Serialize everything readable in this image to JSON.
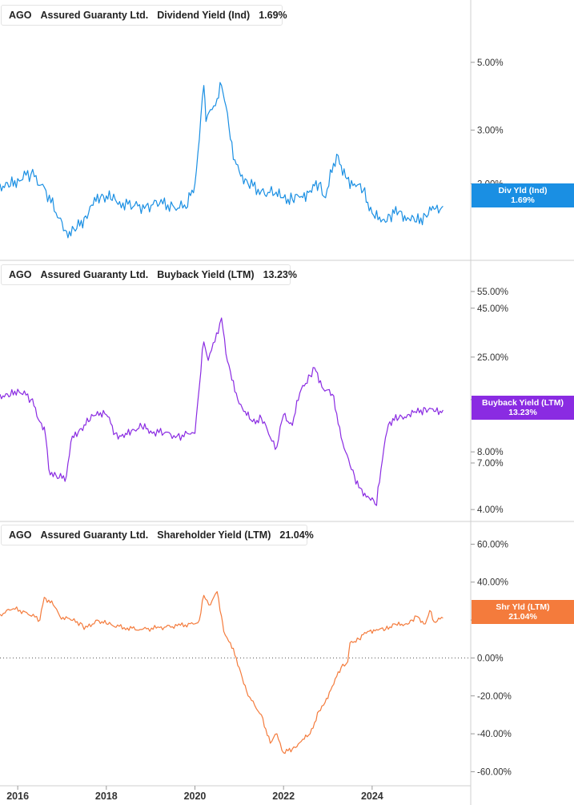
{
  "colors": {
    "dividend": "#1a8fe3",
    "buyback": "#8a2be2",
    "shareholder": "#f47b3c"
  },
  "chart_data": [
    {
      "type": "line",
      "ticker": "AGO",
      "company": "Assured Guaranty Ltd.",
      "metric": "Dividend Yield (Ind)",
      "current": "1.69%",
      "tag_label": "Div Yld (Ind)",
      "tag_value": "1.69%",
      "scale": "log",
      "yticks": [
        {
          "v": 5,
          "label": "5.00%"
        },
        {
          "v": 3,
          "label": "3.00%"
        },
        {
          "v": 2,
          "label": "2.00%"
        }
      ],
      "ylim": [
        1.13,
        8.0
      ],
      "x": [
        2015.6,
        2015.8,
        2016.0,
        2016.3,
        2016.6,
        2016.9,
        2017.1,
        2017.3,
        2017.5,
        2017.7,
        2017.9,
        2018.1,
        2018.3,
        2018.6,
        2018.9,
        2019.2,
        2019.5,
        2019.8,
        2020.0,
        2020.1,
        2020.2,
        2020.25,
        2020.35,
        2020.5,
        2020.6,
        2020.7,
        2020.8,
        2020.9,
        2021.0,
        2021.2,
        2021.5,
        2021.8,
        2022.0,
        2022.2,
        2022.4,
        2022.6,
        2022.8,
        2022.95,
        2023.2,
        2023.3,
        2023.4,
        2023.6,
        2023.8,
        2024.0,
        2024.2,
        2024.4,
        2024.6,
        2024.8,
        2025.0,
        2025.2,
        2025.4,
        2025.6
      ],
      "y": [
        2.0,
        1.95,
        2.08,
        2.15,
        1.95,
        1.55,
        1.4,
        1.4,
        1.55,
        1.7,
        1.85,
        1.78,
        1.75,
        1.68,
        1.7,
        1.72,
        1.7,
        1.66,
        2.0,
        2.8,
        4.2,
        3.2,
        3.5,
        3.8,
        4.2,
        3.6,
        2.8,
        2.4,
        2.2,
        2.0,
        1.9,
        1.85,
        1.8,
        1.78,
        1.82,
        1.9,
        2.0,
        1.8,
        2.5,
        2.3,
        2.1,
        2.0,
        1.9,
        1.6,
        1.5,
        1.58,
        1.62,
        1.55,
        1.5,
        1.58,
        1.65,
        1.69
      ]
    },
    {
      "type": "line",
      "ticker": "AGO",
      "company": "Assured Guaranty Ltd.",
      "metric": "Buyback Yield (LTM)",
      "current": "13.23%",
      "tag_label": "Buyback Yield (LTM)",
      "tag_value": "13.23%",
      "scale": "log",
      "yticks": [
        {
          "v": 55,
          "label": "55.00%"
        },
        {
          "v": 45,
          "label": "45.00%"
        },
        {
          "v": 25,
          "label": "25.00%"
        },
        {
          "v": 15,
          "label": "15.00%"
        },
        {
          "v": 8,
          "label": "8.00%"
        },
        {
          "v": 7,
          "label": "7.00%"
        },
        {
          "v": 4,
          "label": "4.00%"
        }
      ],
      "ylim": [
        3.5,
        80
      ],
      "x": [
        2015.6,
        2015.8,
        2016.0,
        2016.3,
        2016.5,
        2016.6,
        2016.7,
        2016.9,
        2017.1,
        2017.2,
        2017.4,
        2017.6,
        2017.8,
        2018.0,
        2018.2,
        2018.4,
        2018.6,
        2018.8,
        2019.0,
        2019.3,
        2019.6,
        2019.9,
        2020.0,
        2020.1,
        2020.2,
        2020.3,
        2020.45,
        2020.6,
        2020.7,
        2020.8,
        2020.9,
        2021.1,
        2021.3,
        2021.5,
        2021.7,
        2021.85,
        2022.0,
        2022.2,
        2022.4,
        2022.6,
        2022.7,
        2022.9,
        2023.1,
        2023.3,
        2023.4,
        2023.6,
        2023.7,
        2023.9,
        2024.1,
        2024.2,
        2024.3,
        2024.4,
        2024.6,
        2024.8,
        2025.0,
        2025.2,
        2025.4,
        2025.6
      ],
      "y": [
        16,
        15.5,
        17,
        15,
        11.5,
        10.8,
        6.5,
        5.8,
        6.0,
        9.0,
        10.5,
        11.5,
        13.0,
        12.5,
        10.0,
        9.5,
        10.5,
        10.8,
        10.3,
        10.0,
        9.7,
        9.9,
        10.0,
        17.5,
        30.0,
        24.0,
        30.0,
        40.0,
        26.0,
        21.0,
        16.5,
        13.0,
        11.5,
        12.0,
        9.5,
        8.5,
        12.5,
        11.0,
        17.0,
        20.0,
        22.0,
        17.0,
        16.0,
        9.5,
        8.0,
        6.0,
        5.2,
        4.7,
        4.2,
        6.5,
        9.5,
        11.5,
        12.0,
        12.5,
        12.8,
        13.5,
        13.0,
        13.23
      ]
    },
    {
      "type": "line",
      "ticker": "AGO",
      "company": "Assured Guaranty Ltd.",
      "metric": "Shareholder Yield (LTM)",
      "current": "21.04%",
      "tag_label": "Shr Yld (LTM)",
      "tag_value": "21.04%",
      "scale": "linear",
      "yticks": [
        {
          "v": 60,
          "label": "60.00%"
        },
        {
          "v": 40,
          "label": "40.00%"
        },
        {
          "v": 20,
          "label": "20.00%"
        },
        {
          "v": 0,
          "label": "0.00%"
        },
        {
          "v": -20,
          "label": "-20.00%"
        },
        {
          "v": -40,
          "label": "-40.00%"
        },
        {
          "v": -60,
          "label": "-60.00%"
        }
      ],
      "ylim": [
        -67,
        72
      ],
      "x": [
        2015.6,
        2015.9,
        2016.2,
        2016.5,
        2016.6,
        2016.8,
        2016.95,
        2017.2,
        2017.45,
        2017.5,
        2017.8,
        2018.0,
        2018.4,
        2018.8,
        2019.2,
        2019.6,
        2020.0,
        2020.1,
        2020.2,
        2020.35,
        2020.5,
        2020.6,
        2020.65,
        2020.8,
        2021.0,
        2021.2,
        2021.5,
        2021.7,
        2021.85,
        2022.0,
        2022.2,
        2022.4,
        2022.6,
        2022.8,
        2022.9,
        2023.1,
        2023.3,
        2023.45,
        2023.5,
        2023.7,
        2023.9,
        2024.1,
        2024.3,
        2024.5,
        2024.7,
        2024.9,
        2025.0,
        2025.2,
        2025.3,
        2025.4,
        2025.6
      ],
      "y": [
        23,
        26,
        24,
        20,
        32,
        28,
        22,
        20,
        18,
        15,
        20,
        18,
        16,
        15,
        16,
        17,
        18,
        20,
        33,
        28,
        35,
        22,
        14,
        8,
        -5,
        -20,
        -30,
        -45,
        -40,
        -50,
        -48,
        -44,
        -40,
        -28,
        -25,
        -15,
        -5,
        -2,
        8,
        10,
        14,
        15,
        15,
        18,
        17,
        20,
        22,
        18,
        25,
        19,
        21.04
      ]
    }
  ],
  "xaxis": {
    "ticks": [
      {
        "v": 2016,
        "label": "2016"
      },
      {
        "v": 2018,
        "label": "2018"
      },
      {
        "v": 2020,
        "label": "2020"
      },
      {
        "v": 2022,
        "label": "2022"
      },
      {
        "v": 2024,
        "label": "2024"
      }
    ],
    "xlim": [
      2015.6,
      2025.9
    ]
  }
}
